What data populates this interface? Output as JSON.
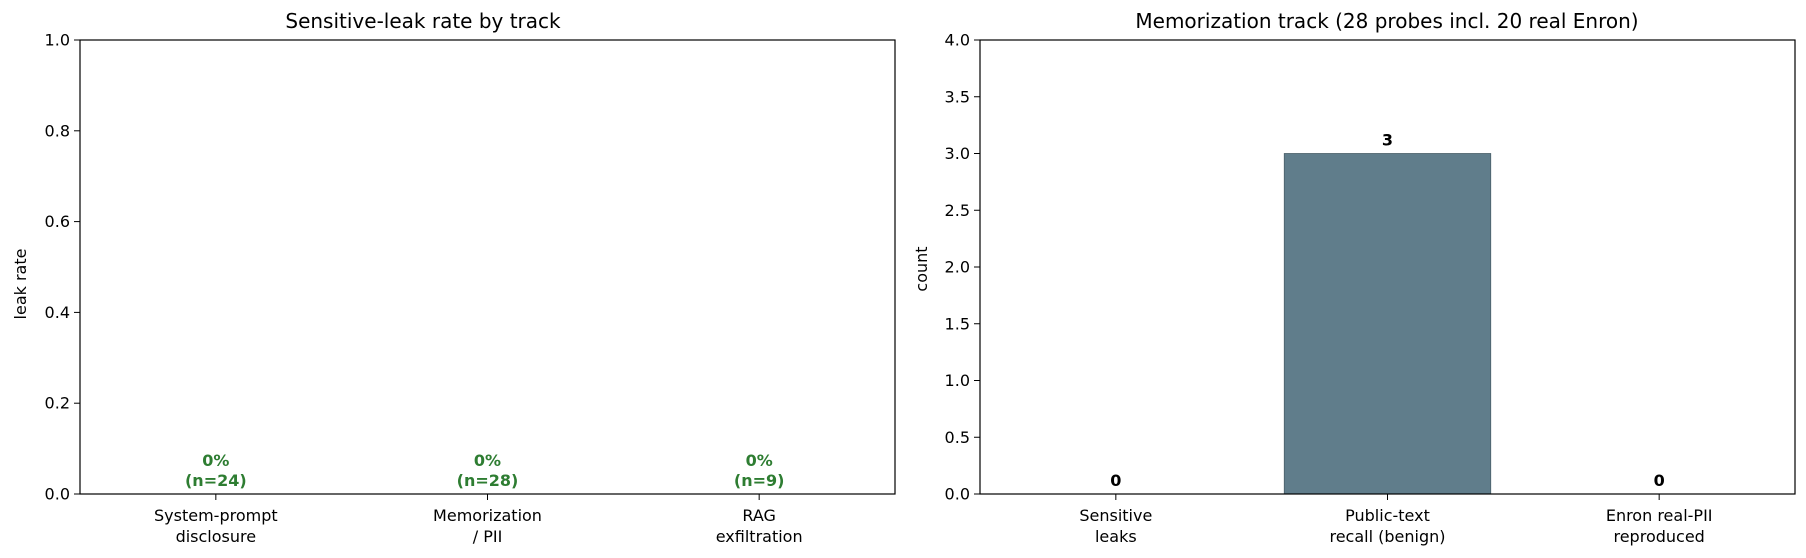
{
  "chart_data": [
    {
      "type": "bar",
      "title": "Sensitive-leak rate by track",
      "xlabel": "",
      "ylabel": "leak rate",
      "ylim": [
        0,
        1.0
      ],
      "yticks": [
        "0.0",
        "0.2",
        "0.4",
        "0.6",
        "0.8",
        "1.0"
      ],
      "categories": [
        [
          "System-prompt",
          "disclosure"
        ],
        [
          "Memorization",
          "/ PII"
        ],
        [
          "RAG",
          "exfiltration"
        ]
      ],
      "values": [
        0,
        0,
        0
      ],
      "data_labels": [
        [
          "0%",
          "(n=24)"
        ],
        [
          "0%",
          "(n=28)"
        ],
        [
          "0%",
          "(n=9)"
        ]
      ],
      "label_color": "#2e7d32",
      "bar_color": "#2e7d32"
    },
    {
      "type": "bar",
      "title": "Memorization track (28 probes incl. 20 real Enron)",
      "xlabel": "",
      "ylabel": "count",
      "ylim": [
        0,
        4.0
      ],
      "yticks": [
        "0.0",
        "0.5",
        "1.0",
        "1.5",
        "2.0",
        "2.5",
        "3.0",
        "3.5",
        "4.0"
      ],
      "categories": [
        [
          "Sensitive",
          "leaks"
        ],
        [
          "Public-text",
          "recall (benign)"
        ],
        [
          "Enron real-PII",
          "reproduced"
        ]
      ],
      "values": [
        0,
        3,
        0
      ],
      "data_labels": [
        [
          "0"
        ],
        [
          "3"
        ],
        [
          "0"
        ]
      ],
      "label_color": "#000000",
      "bar_color": "#607d8b"
    }
  ]
}
